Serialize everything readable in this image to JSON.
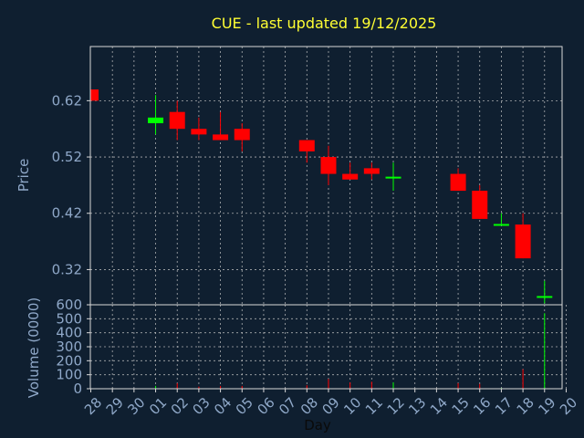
{
  "chart_data": {
    "type": "candlestick",
    "title": "CUE - last updated 19/12/2025",
    "xlabel": "Day",
    "price_panel": {
      "ylabel": "Price",
      "yticks": [
        "0.32",
        "0.42",
        "0.52",
        "0.62"
      ],
      "ylim": [
        0.2575,
        0.7162
      ],
      "grid": true
    },
    "volume_panel": {
      "ylabel": "Volume (0000)",
      "yticks": [
        "0",
        "100",
        "200",
        "300",
        "400",
        "500",
        "600"
      ],
      "ylim": [
        0,
        600
      ],
      "grid": true
    },
    "x_ticks": [
      "28",
      "29",
      "30",
      "01",
      "02",
      "03",
      "04",
      "05",
      "06",
      "07",
      "08",
      "09",
      "10",
      "11",
      "12",
      "13",
      "14",
      "15",
      "16",
      "17",
      "18",
      "19",
      "20"
    ],
    "up_color": "#00ff00",
    "down_color": "#ff0000",
    "candles": [
      {
        "day": "28",
        "open": 0.64,
        "high": 0.64,
        "low": 0.62,
        "close": 0.62,
        "volume": 2
      },
      {
        "day": "01",
        "open": 0.58,
        "high": 0.63,
        "low": 0.56,
        "close": 0.59,
        "volume": 20
      },
      {
        "day": "02",
        "open": 0.6,
        "high": 0.62,
        "low": 0.55,
        "close": 0.57,
        "volume": 40
      },
      {
        "day": "03",
        "open": 0.57,
        "high": 0.59,
        "low": 0.55,
        "close": 0.56,
        "volume": 15
      },
      {
        "day": "04",
        "open": 0.56,
        "high": 0.6,
        "low": 0.55,
        "close": 0.55,
        "volume": 20
      },
      {
        "day": "05",
        "open": 0.57,
        "high": 0.58,
        "low": 0.53,
        "close": 0.55,
        "volume": 20
      },
      {
        "day": "08",
        "open": 0.55,
        "high": 0.55,
        "low": 0.51,
        "close": 0.53,
        "volume": 25
      },
      {
        "day": "09",
        "open": 0.52,
        "high": 0.54,
        "low": 0.47,
        "close": 0.49,
        "volume": 70
      },
      {
        "day": "10",
        "open": 0.49,
        "high": 0.51,
        "low": 0.48,
        "close": 0.48,
        "volume": 45
      },
      {
        "day": "11",
        "open": 0.5,
        "high": 0.51,
        "low": 0.48,
        "close": 0.49,
        "volume": 50
      },
      {
        "day": "12",
        "open": 0.483,
        "high": 0.51,
        "low": 0.46,
        "close": 0.485,
        "volume": 45
      },
      {
        "day": "15",
        "open": 0.49,
        "high": 0.5,
        "low": 0.46,
        "close": 0.46,
        "volume": 40
      },
      {
        "day": "16",
        "open": 0.46,
        "high": 0.47,
        "low": 0.41,
        "close": 0.41,
        "volume": 35
      },
      {
        "day": "17",
        "open": 0.4,
        "high": 0.42,
        "low": 0.4,
        "close": 0.401,
        "volume": 5
      },
      {
        "day": "18",
        "open": 0.4,
        "high": 0.42,
        "low": 0.34,
        "close": 0.34,
        "volume": 140
      },
      {
        "day": "19",
        "open": 0.27,
        "high": 0.3,
        "low": 0.26,
        "close": 0.273,
        "volume": 540
      }
    ]
  }
}
